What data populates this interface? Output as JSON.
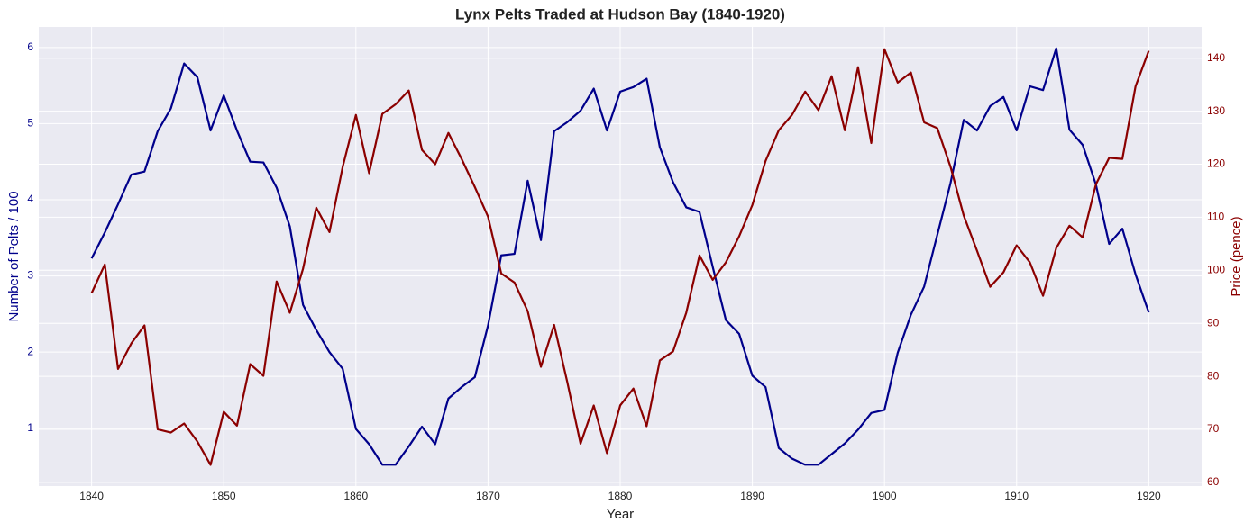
{
  "chart_data": {
    "type": "line",
    "title": "Lynx Pelts Traded at Hudson Bay (1840-1920)",
    "x_label": "Year",
    "y_label": "Number of Pelts / 100",
    "y2_label": "Price (pence)",
    "x": [
      1840,
      1841,
      1842,
      1843,
      1844,
      1845,
      1846,
      1847,
      1848,
      1849,
      1850,
      1851,
      1852,
      1853,
      1854,
      1855,
      1856,
      1857,
      1858,
      1859,
      1860,
      1861,
      1862,
      1863,
      1864,
      1865,
      1866,
      1867,
      1868,
      1869,
      1870,
      1871,
      1872,
      1873,
      1874,
      1875,
      1876,
      1877,
      1878,
      1879,
      1880,
      1881,
      1882,
      1883,
      1884,
      1885,
      1886,
      1887,
      1888,
      1889,
      1890,
      1891,
      1892,
      1893,
      1894,
      1895,
      1896,
      1897,
      1898,
      1899,
      1900,
      1901,
      1902,
      1903,
      1904,
      1905,
      1906,
      1907,
      1908,
      1909,
      1910,
      1911,
      1912,
      1913,
      1914,
      1915,
      1916,
      1917,
      1918,
      1919,
      1920
    ],
    "series": [
      {
        "name": "Number of Pelts / 100",
        "color": "#00008b",
        "values": [
          3.23,
          3.57,
          3.94,
          4.33,
          4.37,
          4.9,
          5.2,
          5.79,
          5.61,
          4.91,
          5.37,
          4.91,
          4.5,
          4.49,
          4.16,
          3.65,
          2.62,
          2.29,
          2.0,
          1.78,
          0.99,
          0.79,
          0.52,
          0.52,
          0.76,
          1.02,
          0.79,
          1.39,
          1.54,
          1.67,
          2.35,
          3.27,
          3.29,
          4.25,
          3.47,
          4.9,
          5.02,
          5.17,
          5.46,
          4.91,
          5.42,
          5.48,
          5.59,
          4.69,
          4.23,
          3.9,
          3.84,
          3.12,
          2.42,
          2.24,
          1.69,
          1.54,
          0.74,
          0.6,
          0.52,
          0.52,
          0.66,
          0.8,
          0.98,
          1.2,
          1.24,
          1.99,
          2.49,
          2.86,
          3.54,
          4.22,
          5.05,
          4.91,
          5.23,
          5.35,
          4.91,
          5.49,
          5.44,
          5.99,
          4.92,
          4.72,
          4.2,
          3.42,
          3.62,
          3.02,
          2.52
        ]
      },
      {
        "name": "Price (pence)",
        "color": "#8b0000",
        "axis": "y2",
        "values": [
          95.7,
          101.1,
          81.4,
          86.2,
          89.6,
          70.0,
          69.4,
          71.1,
          67.7,
          63.3,
          73.3,
          70.7,
          82.3,
          80.1,
          97.9,
          92.0,
          100.3,
          111.8,
          107.2,
          119.5,
          129.3,
          118.3,
          129.5,
          131.3,
          133.9,
          122.7,
          120.0,
          125.9,
          121.0,
          115.7,
          110.1,
          99.4,
          97.7,
          92.3,
          81.8,
          89.7,
          78.9,
          67.3,
          74.5,
          65.5,
          74.5,
          77.7,
          70.6,
          83.0,
          84.7,
          92.0,
          102.8,
          98.2,
          101.5,
          106.4,
          112.3,
          120.6,
          126.4,
          129.3,
          133.7,
          130.2,
          136.6,
          126.4,
          138.3,
          124.0,
          141.7,
          135.4,
          137.3,
          127.9,
          126.8,
          119.5,
          110.3,
          103.7,
          96.9,
          99.6,
          104.7,
          101.5,
          95.2,
          104.2,
          108.4,
          106.2,
          116.2,
          121.2,
          121.0,
          134.7,
          141.4
        ]
      }
    ],
    "xlim": [
      1836,
      1924
    ],
    "xticks": [
      1840,
      1850,
      1860,
      1870,
      1880,
      1890,
      1900,
      1910,
      1920
    ],
    "ylim": [
      0.24,
      6.27
    ],
    "yticks": [
      1,
      2,
      3,
      4,
      5,
      6
    ],
    "y2lim": [
      59.3,
      145.9
    ],
    "y2ticks": [
      60,
      70,
      80,
      90,
      100,
      110,
      120,
      130,
      140
    ],
    "grid": true
  }
}
